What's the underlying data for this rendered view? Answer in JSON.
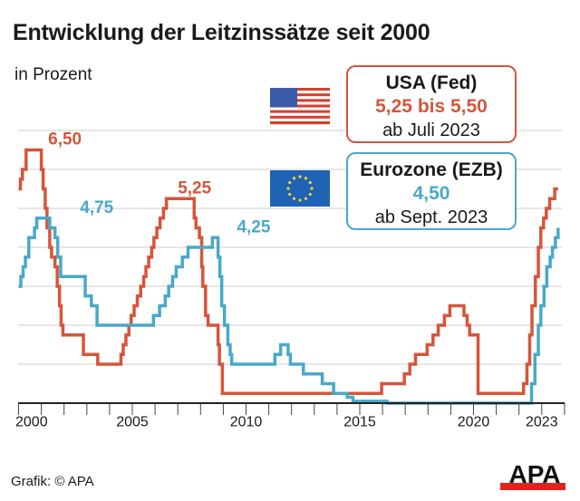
{
  "title": "Entwicklung der Leitzinssätze seit 2000",
  "subtitle": "in Prozent",
  "footer": "Grafik: © APA",
  "logo_text": "APA",
  "colors": {
    "fed": "#d6553a",
    "ezb": "#4aa8c8",
    "grid": "#dddddd"
  },
  "legend": {
    "usa": {
      "title": "USA (Fed)",
      "value": "5,25 bis 5,50",
      "date": "ab Juli 2023",
      "flag": "us-flag-icon"
    },
    "ezb": {
      "title": "Eurozone (EZB)",
      "value": "4,50",
      "date": "ab Sept. 2023",
      "flag": "eu-flag-icon"
    }
  },
  "chart_data": {
    "type": "line",
    "step": true,
    "title": "Entwicklung der Leitzinssätze seit 2000",
    "ylabel": "in Prozent",
    "xlim": [
      2000,
      2024
    ],
    "ylim": [
      0,
      7
    ],
    "grid": true,
    "x_ticks": [
      "2000",
      "2005",
      "2010",
      "2015",
      "2020",
      "2023"
    ],
    "annotations": [
      {
        "text": "6,50",
        "series": "fed",
        "x": 2001.3,
        "y": 6.5
      },
      {
        "text": "5,25",
        "series": "fed",
        "x": 2007.0,
        "y": 5.25
      },
      {
        "text": "4,75",
        "series": "ezb",
        "x": 2002.7,
        "y": 4.75
      },
      {
        "text": "4,25",
        "series": "ezb",
        "x": 2009.6,
        "y": 4.25
      }
    ],
    "series": [
      {
        "name": "USA (Fed)",
        "key": "fed",
        "points": [
          [
            2000.0,
            5.5
          ],
          [
            2000.08,
            5.75
          ],
          [
            2000.17,
            6.0
          ],
          [
            2000.33,
            6.5
          ],
          [
            2001.0,
            6.0
          ],
          [
            2001.08,
            5.5
          ],
          [
            2001.17,
            5.0
          ],
          [
            2001.25,
            4.5
          ],
          [
            2001.37,
            4.0
          ],
          [
            2001.45,
            3.75
          ],
          [
            2001.6,
            3.5
          ],
          [
            2001.7,
            3.0
          ],
          [
            2001.8,
            2.5
          ],
          [
            2001.87,
            2.0
          ],
          [
            2001.95,
            1.75
          ],
          [
            2002.85,
            1.25
          ],
          [
            2003.48,
            1.0
          ],
          [
            2004.5,
            1.25
          ],
          [
            2004.6,
            1.5
          ],
          [
            2004.72,
            1.75
          ],
          [
            2004.85,
            2.0
          ],
          [
            2004.95,
            2.25
          ],
          [
            2005.08,
            2.5
          ],
          [
            2005.22,
            2.75
          ],
          [
            2005.37,
            3.0
          ],
          [
            2005.5,
            3.25
          ],
          [
            2005.6,
            3.5
          ],
          [
            2005.72,
            3.75
          ],
          [
            2005.85,
            4.0
          ],
          [
            2005.95,
            4.25
          ],
          [
            2006.08,
            4.5
          ],
          [
            2006.22,
            4.75
          ],
          [
            2006.37,
            5.0
          ],
          [
            2006.5,
            5.25
          ],
          [
            2007.72,
            4.75
          ],
          [
            2007.8,
            4.5
          ],
          [
            2007.95,
            4.25
          ],
          [
            2008.05,
            3.5
          ],
          [
            2008.1,
            3.0
          ],
          [
            2008.22,
            2.25
          ],
          [
            2008.33,
            2.0
          ],
          [
            2008.77,
            1.5
          ],
          [
            2008.83,
            1.0
          ],
          [
            2008.96,
            0.25
          ],
          [
            2015.96,
            0.5
          ],
          [
            2016.96,
            0.75
          ],
          [
            2017.2,
            1.0
          ],
          [
            2017.45,
            1.25
          ],
          [
            2017.96,
            1.5
          ],
          [
            2018.22,
            1.75
          ],
          [
            2018.45,
            2.0
          ],
          [
            2018.72,
            2.25
          ],
          [
            2018.96,
            2.5
          ],
          [
            2019.58,
            2.25
          ],
          [
            2019.72,
            2.0
          ],
          [
            2019.83,
            1.75
          ],
          [
            2020.2,
            0.25
          ],
          [
            2022.2,
            0.5
          ],
          [
            2022.35,
            1.0
          ],
          [
            2022.47,
            1.75
          ],
          [
            2022.57,
            2.5
          ],
          [
            2022.72,
            3.25
          ],
          [
            2022.85,
            4.0
          ],
          [
            2022.96,
            4.5
          ],
          [
            2023.08,
            4.75
          ],
          [
            2023.2,
            5.0
          ],
          [
            2023.35,
            5.25
          ],
          [
            2023.57,
            5.5
          ],
          [
            2023.72,
            5.5
          ]
        ]
      },
      {
        "name": "Eurozone (EZB)",
        "key": "ezb",
        "points": [
          [
            2000.0,
            3.0
          ],
          [
            2000.1,
            3.25
          ],
          [
            2000.2,
            3.5
          ],
          [
            2000.3,
            3.75
          ],
          [
            2000.45,
            4.25
          ],
          [
            2000.7,
            4.5
          ],
          [
            2000.8,
            4.75
          ],
          [
            2001.37,
            4.5
          ],
          [
            2001.6,
            4.25
          ],
          [
            2001.72,
            3.75
          ],
          [
            2001.85,
            3.25
          ],
          [
            2002.93,
            2.75
          ],
          [
            2003.2,
            2.5
          ],
          [
            2003.45,
            2.0
          ],
          [
            2005.93,
            2.25
          ],
          [
            2006.2,
            2.5
          ],
          [
            2006.45,
            2.75
          ],
          [
            2006.6,
            3.0
          ],
          [
            2006.77,
            3.25
          ],
          [
            2006.93,
            3.5
          ],
          [
            2007.2,
            3.75
          ],
          [
            2007.45,
            4.0
          ],
          [
            2008.52,
            4.25
          ],
          [
            2008.77,
            3.75
          ],
          [
            2008.85,
            3.25
          ],
          [
            2008.93,
            2.5
          ],
          [
            2009.05,
            2.0
          ],
          [
            2009.2,
            1.5
          ],
          [
            2009.3,
            1.25
          ],
          [
            2009.37,
            1.0
          ],
          [
            2011.27,
            1.25
          ],
          [
            2011.52,
            1.5
          ],
          [
            2011.85,
            1.25
          ],
          [
            2011.95,
            1.0
          ],
          [
            2012.52,
            0.75
          ],
          [
            2013.35,
            0.5
          ],
          [
            2013.85,
            0.25
          ],
          [
            2014.45,
            0.15
          ],
          [
            2014.7,
            0.05
          ],
          [
            2016.2,
            0.0
          ],
          [
            2022.55,
            0.5
          ],
          [
            2022.7,
            1.25
          ],
          [
            2022.85,
            2.0
          ],
          [
            2022.96,
            2.5
          ],
          [
            2023.1,
            3.0
          ],
          [
            2023.22,
            3.5
          ],
          [
            2023.37,
            3.75
          ],
          [
            2023.47,
            4.0
          ],
          [
            2023.6,
            4.25
          ],
          [
            2023.72,
            4.5
          ]
        ]
      }
    ]
  }
}
